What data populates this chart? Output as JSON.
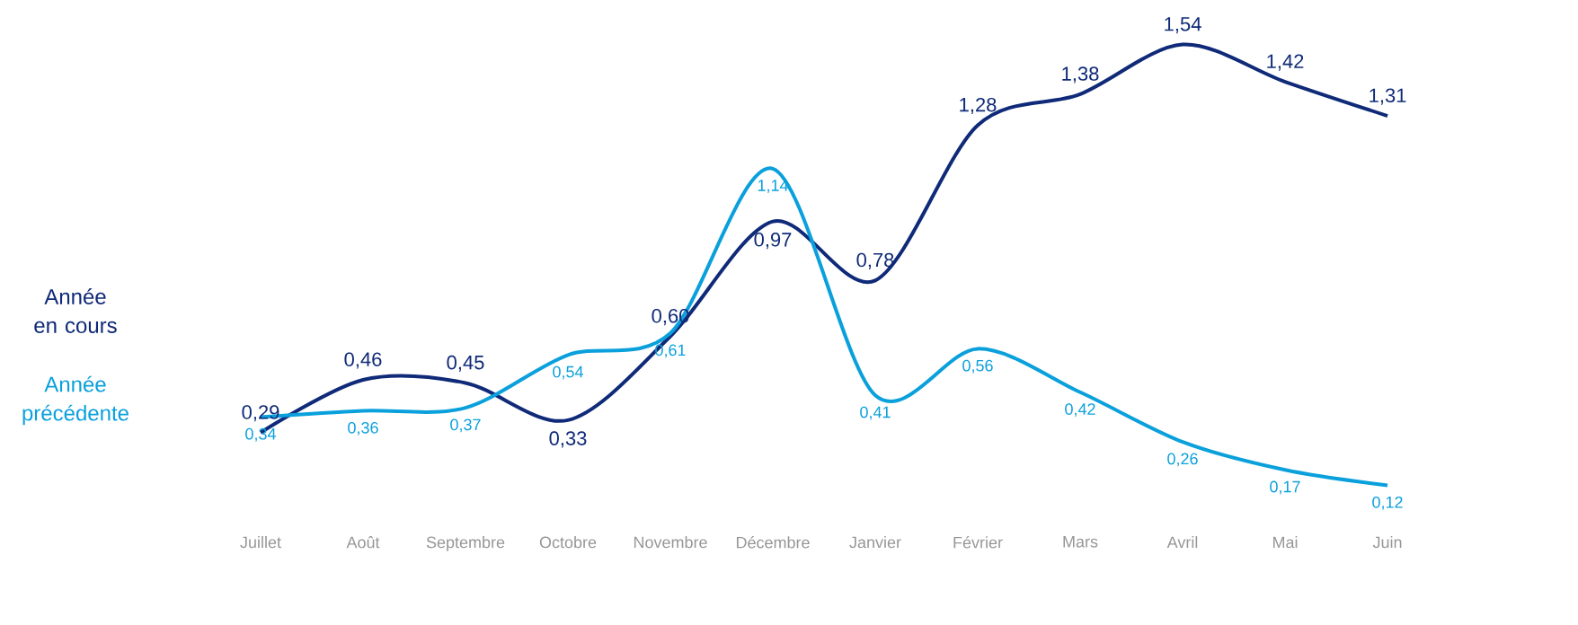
{
  "chart_data": {
    "type": "line",
    "categories": [
      "Juillet",
      "Août",
      "Septembre",
      "Octobre",
      "Novembre",
      "Décembre",
      "Janvier",
      "Février",
      "Mars",
      "Avril",
      "Mai",
      "Juin"
    ],
    "series": [
      {
        "name": "Année en cours",
        "color": "#0f2a78",
        "values": [
          0.29,
          0.46,
          0.45,
          0.33,
          0.6,
          0.97,
          0.78,
          1.28,
          1.38,
          1.54,
          1.42,
          1.31
        ],
        "value_labels": [
          "0,29",
          "0,46",
          "0,45",
          "0,33",
          "0,60",
          "0,97",
          "0,78",
          "1,28",
          "1,38",
          "1,54",
          "1,42",
          "1,31"
        ]
      },
      {
        "name": "Année précédente",
        "color": "#0aa0dc",
        "values": [
          0.34,
          0.36,
          0.37,
          0.54,
          0.61,
          1.14,
          0.41,
          0.56,
          0.42,
          0.26,
          0.17,
          0.12
        ],
        "value_labels": [
          "0,34",
          "0,36",
          "0,37",
          "0,54",
          "0,61",
          "1,14",
          "0,41",
          "0,56",
          "0,42",
          "0,26",
          "0,17",
          "0,12"
        ]
      }
    ],
    "legend": "left",
    "marker": "none",
    "line_style": "solid"
  }
}
